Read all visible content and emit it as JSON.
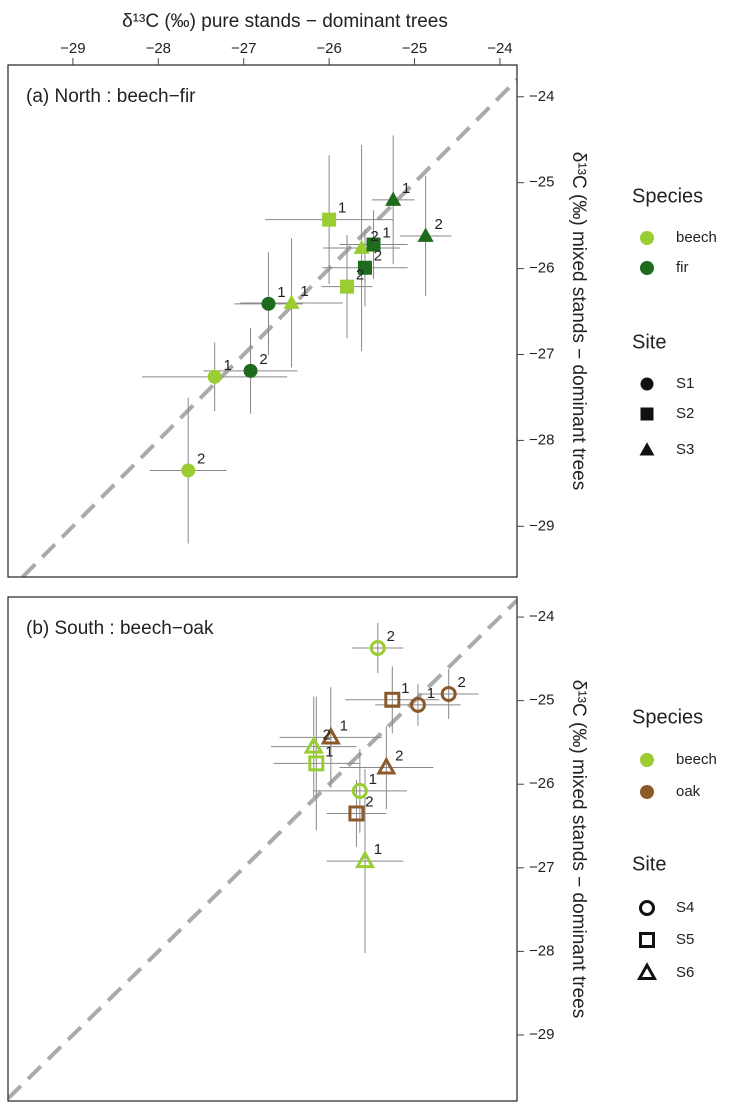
{
  "x_axis_title": "δ¹³C (‰) pure stands − dominant trees",
  "chart_data": [
    {
      "type": "scatter",
      "title": "(a) North : beech−fir",
      "y_axis_title": "δ¹³C (‰) mixed stands − dominant trees",
      "xlim": [
        -29.76,
        -23.8
      ],
      "ylim": [
        -29.59,
        -23.63
      ],
      "xticks": [
        {
          "value": -29,
          "label": "−29"
        },
        {
          "value": -28,
          "label": "−28"
        },
        {
          "value": -27,
          "label": "−27"
        },
        {
          "value": -26,
          "label": "−26"
        },
        {
          "value": -25,
          "label": "−25"
        },
        {
          "value": -24,
          "label": "−24"
        }
      ],
      "yticks": [
        {
          "value": -24,
          "label": "−24"
        },
        {
          "value": -25,
          "label": "−25"
        },
        {
          "value": -26,
          "label": "−26"
        },
        {
          "value": -27,
          "label": "−27"
        },
        {
          "value": -28,
          "label": "−28"
        },
        {
          "value": -29,
          "label": "−29"
        }
      ],
      "identity_line": true,
      "filled_markers": true,
      "species_legend_title": "Species",
      "site_legend_title": "Site",
      "sites": [
        {
          "name": "S1",
          "shape": "circle"
        },
        {
          "name": "S2",
          "shape": "square"
        },
        {
          "name": "S3",
          "shape": "triangle"
        }
      ],
      "series": [
        {
          "name": "beech",
          "color": "#9acd32",
          "x": [
            -27.34,
            -27.65,
            -26.0,
            -25.79,
            -26.44,
            -25.62
          ],
          "values": [
            -27.26,
            -28.35,
            -25.43,
            -26.21,
            -26.4,
            -25.76
          ],
          "x_err": [
            0.85,
            0.45,
            0.75,
            0.3,
            0.6,
            0.45
          ],
          "y_err": [
            0.4,
            0.85,
            0.75,
            0.6,
            0.75,
            1.2
          ],
          "site": [
            "S1",
            "S1",
            "S2",
            "S2",
            "S3",
            "S3"
          ],
          "point_labels": [
            "1",
            "2",
            "1",
            "2",
            "1",
            "2"
          ]
        },
        {
          "name": "fir",
          "color": "#1e6b1e",
          "x": [
            -26.71,
            -26.92,
            -25.48,
            -25.58,
            -25.25,
            -24.87
          ],
          "values": [
            -26.41,
            -27.19,
            -25.72,
            -25.99,
            -25.2,
            -25.62
          ],
          "x_err": [
            0.4,
            0.55,
            0.4,
            0.5,
            0.25,
            0.3
          ],
          "y_err": [
            0.6,
            0.5,
            0.4,
            0.45,
            0.75,
            0.7
          ],
          "site": [
            "S1",
            "S1",
            "S2",
            "S2",
            "S3",
            "S3"
          ],
          "point_labels": [
            "1",
            "2",
            "1",
            "2",
            "1",
            "2"
          ]
        }
      ]
    },
    {
      "type": "scatter",
      "title": "(b) South : beech−oak",
      "y_axis_title": "δ¹³C (‰) mixed stands − dominant trees",
      "xlim": [
        -29.76,
        -23.8
      ],
      "ylim": [
        -29.79,
        -23.76
      ],
      "yticks": [
        {
          "value": -24,
          "label": "−24"
        },
        {
          "value": -25,
          "label": "−25"
        },
        {
          "value": -26,
          "label": "−26"
        },
        {
          "value": -27,
          "label": "−27"
        },
        {
          "value": -28,
          "label": "−28"
        },
        {
          "value": -29,
          "label": "−29"
        }
      ],
      "identity_line": true,
      "filled_markers": false,
      "species_legend_title": "Species",
      "site_legend_title": "Site",
      "sites": [
        {
          "name": "S4",
          "shape": "circle"
        },
        {
          "name": "S5",
          "shape": "square"
        },
        {
          "name": "S6",
          "shape": "triangle"
        }
      ],
      "series": [
        {
          "name": "beech",
          "color": "#9acd32",
          "x": [
            -25.43,
            -25.64,
            -26.15,
            -26.18,
            -25.58
          ],
          "values": [
            -24.37,
            -26.08,
            -25.75,
            -25.55,
            -26.92
          ],
          "x_err": [
            0.3,
            0.55,
            0.5,
            0.5,
            0.45
          ],
          "y_err": [
            0.3,
            0.5,
            0.8,
            0.6,
            1.1
          ],
          "site": [
            "S4",
            "S4",
            "S5",
            "S6",
            "S6"
          ],
          "point_labels": [
            "2",
            "1",
            "1",
            "2",
            "1"
          ]
        },
        {
          "name": "oak",
          "color": "#8b5a2b",
          "x": [
            -24.96,
            -24.6,
            -25.26,
            -25.68,
            -25.98,
            -25.33
          ],
          "values": [
            -25.05,
            -24.92,
            -24.99,
            -26.35,
            -25.44,
            -25.8
          ],
          "x_err": [
            0.5,
            0.35,
            0.55,
            0.35,
            0.6,
            0.55
          ],
          "y_err": [
            0.25,
            0.3,
            0.4,
            0.4,
            0.6,
            0.5
          ],
          "site": [
            "S4",
            "S4",
            "S5",
            "S5",
            "S6",
            "S6"
          ],
          "point_labels": [
            "1",
            "2",
            "1",
            "2",
            "1",
            "2"
          ]
        }
      ]
    }
  ]
}
